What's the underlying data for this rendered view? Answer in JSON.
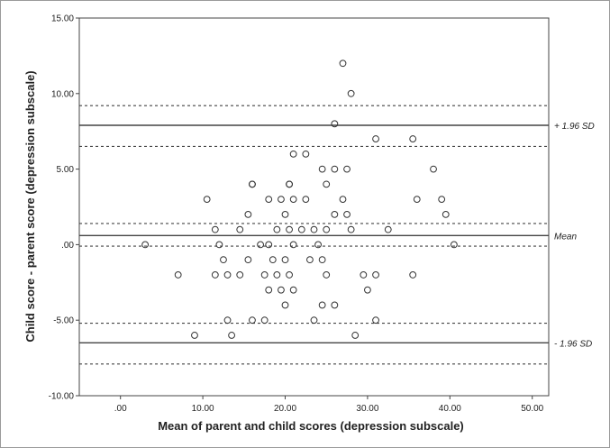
{
  "chart_data": {
    "type": "scatter",
    "title": "",
    "xlabel": "Mean of parent and child scores (depression subscale)",
    "ylabel": "Child score - parent score (depression subscale)",
    "xlim": [
      -5,
      52
    ],
    "ylim": [
      -10,
      15
    ],
    "x_ticks": [
      ".00",
      "10.00",
      "20.00",
      "30.00",
      "40.00",
      "50.00"
    ],
    "x_tick_values": [
      0,
      10,
      20,
      30,
      40,
      50
    ],
    "y_ticks": [
      "15.00",
      "10.00",
      "5.00",
      ".00",
      "-5.00",
      "-10.00"
    ],
    "y_tick_values": [
      15,
      10,
      5,
      0,
      -5,
      -10
    ],
    "reference_lines": [
      {
        "label": "+ 1.96 SD",
        "value": 7.9,
        "style": "solid"
      },
      {
        "label": "",
        "value": 9.2,
        "style": "dotted"
      },
      {
        "label": "",
        "value": 6.5,
        "style": "dotted"
      },
      {
        "label": "Mean",
        "value": 0.6,
        "style": "solid"
      },
      {
        "label": "",
        "value": 1.4,
        "style": "dotted"
      },
      {
        "label": "",
        "value": -0.1,
        "style": "dotted"
      },
      {
        "label": "- 1.96 SD",
        "value": -6.5,
        "style": "solid"
      },
      {
        "label": "",
        "value": -5.2,
        "style": "dotted"
      },
      {
        "label": "",
        "value": -7.9,
        "style": "dotted"
      }
    ],
    "points": [
      [
        27,
        12
      ],
      [
        28,
        10
      ],
      [
        26,
        8
      ],
      [
        31,
        7
      ],
      [
        35.5,
        7
      ],
      [
        21,
        6
      ],
      [
        22.5,
        6
      ],
      [
        16,
        4
      ],
      [
        20.5,
        4
      ],
      [
        25,
        4
      ],
      [
        16,
        4
      ],
      [
        20.5,
        4
      ],
      [
        24.5,
        5
      ],
      [
        26,
        5
      ],
      [
        27.5,
        5
      ],
      [
        38,
        5
      ],
      [
        10.5,
        3
      ],
      [
        18,
        3
      ],
      [
        19.5,
        3
      ],
      [
        21,
        3
      ],
      [
        22.5,
        3
      ],
      [
        27,
        3
      ],
      [
        36,
        3
      ],
      [
        39,
        3
      ],
      [
        15.5,
        2
      ],
      [
        20,
        2
      ],
      [
        26,
        2
      ],
      [
        27.5,
        2
      ],
      [
        39.5,
        2
      ],
      [
        11.5,
        1
      ],
      [
        14.5,
        1
      ],
      [
        19,
        1
      ],
      [
        20.5,
        1
      ],
      [
        22,
        1
      ],
      [
        23.5,
        1
      ],
      [
        25,
        1
      ],
      [
        28,
        1
      ],
      [
        32.5,
        1
      ],
      [
        3,
        0
      ],
      [
        12,
        0
      ],
      [
        17,
        0
      ],
      [
        18,
        0
      ],
      [
        21,
        0
      ],
      [
        24,
        0
      ],
      [
        40.5,
        0
      ],
      [
        12.5,
        -1
      ],
      [
        15.5,
        -1
      ],
      [
        18.5,
        -1
      ],
      [
        20,
        -1
      ],
      [
        23,
        -1
      ],
      [
        24.5,
        -1
      ],
      [
        7,
        -2
      ],
      [
        11.5,
        -2
      ],
      [
        13,
        -2
      ],
      [
        14.5,
        -2
      ],
      [
        17.5,
        -2
      ],
      [
        19,
        -2
      ],
      [
        20.5,
        -2
      ],
      [
        25,
        -2
      ],
      [
        29.5,
        -2
      ],
      [
        31,
        -2
      ],
      [
        35.5,
        -2
      ],
      [
        18,
        -3
      ],
      [
        19.5,
        -3
      ],
      [
        21,
        -3
      ],
      [
        30,
        -3
      ],
      [
        20,
        -4
      ],
      [
        24.5,
        -4
      ],
      [
        26,
        -4
      ],
      [
        13,
        -5
      ],
      [
        16,
        -5
      ],
      [
        17.5,
        -5
      ],
      [
        23.5,
        -5
      ],
      [
        31,
        -5
      ],
      [
        9,
        -6
      ],
      [
        13.5,
        -6
      ],
      [
        28.5,
        -6
      ]
    ]
  }
}
